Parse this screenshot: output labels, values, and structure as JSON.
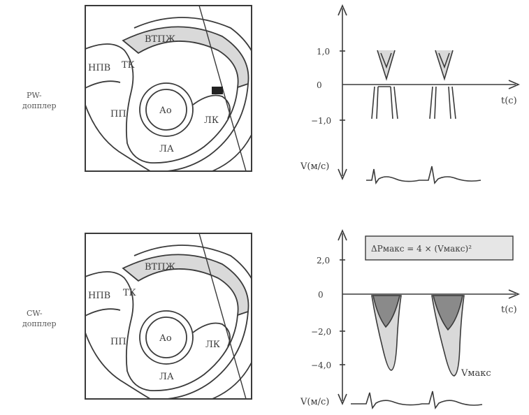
{
  "side_labels": {
    "pw_line1": "PW-",
    "pw_line2": "допплер",
    "cw_line1": "CW-",
    "cw_line2": "допплер"
  },
  "anatomy_labels": {
    "vtpzh": "ВТПЖ",
    "npv": "НПВ",
    "tk": "ТК",
    "ao": "Ао",
    "pp": "ПП",
    "lk": "ЛК",
    "la": "ЛА"
  },
  "pw_plot": {
    "ticks": [
      "1,0",
      "0",
      "−1,0"
    ],
    "x_label": "t(с)",
    "y_label": "V(м/с)"
  },
  "cw_plot": {
    "ticks": [
      "2,0",
      "0",
      "−2,0",
      "−4,0"
    ],
    "x_label": "t(с)",
    "y_label": "V(м/с)",
    "formula": "ΔPмакс = 4 × (Vмакс)²",
    "vmax_label": "Vмакс"
  },
  "colors": {
    "ink": "#3a3a3a",
    "fill_light": "#d9d9d9",
    "fill_dark": "#8a8a8a",
    "sample_volume": "#222222"
  }
}
